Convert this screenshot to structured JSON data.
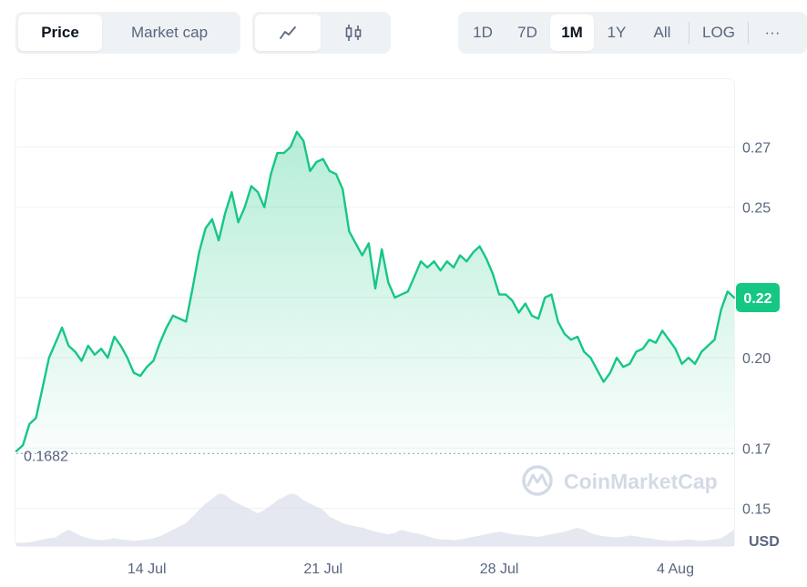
{
  "toolbar": {
    "metric_tabs": [
      {
        "label": "Price",
        "active": true
      },
      {
        "label": "Market cap",
        "active": false
      }
    ],
    "chart_type_icons": [
      "line-chart-icon",
      "candlestick-icon"
    ],
    "range_buttons": [
      {
        "label": "1D",
        "active": false
      },
      {
        "label": "7D",
        "active": false
      },
      {
        "label": "1M",
        "active": true
      },
      {
        "label": "1Y",
        "active": false
      },
      {
        "label": "All",
        "active": false
      }
    ],
    "log_label": "LOG",
    "more_label": "···"
  },
  "chart_data": {
    "type": "area",
    "x_tick_labels": [
      "14 Jul",
      "21 Jul",
      "28 Jul",
      "4 Aug"
    ],
    "y_tick_labels": [
      "0.27",
      "0.25",
      "0.22",
      "0.20",
      "0.17",
      "0.15"
    ],
    "reference_line": {
      "label": "0.1682",
      "value": 0.1682
    },
    "current_price_label": "0.22",
    "currency_label": "USD",
    "watermark": "CoinMarketCap",
    "price_series": [
      [
        0,
        0.169
      ],
      [
        1,
        0.171
      ],
      [
        2,
        0.178
      ],
      [
        3,
        0.18
      ],
      [
        4,
        0.19
      ],
      [
        5,
        0.2
      ],
      [
        6,
        0.205
      ],
      [
        7,
        0.21
      ],
      [
        8,
        0.204
      ],
      [
        9,
        0.202
      ],
      [
        10,
        0.199
      ],
      [
        11,
        0.204
      ],
      [
        12,
        0.201
      ],
      [
        13,
        0.203
      ],
      [
        14,
        0.2
      ],
      [
        15,
        0.207
      ],
      [
        16,
        0.204
      ],
      [
        17,
        0.2
      ],
      [
        18,
        0.195
      ],
      [
        19,
        0.194
      ],
      [
        20,
        0.197
      ],
      [
        21,
        0.199
      ],
      [
        22,
        0.205
      ],
      [
        23,
        0.21
      ],
      [
        24,
        0.214
      ],
      [
        25,
        0.213
      ],
      [
        26,
        0.212
      ],
      [
        27,
        0.223
      ],
      [
        28,
        0.235
      ],
      [
        29,
        0.243
      ],
      [
        30,
        0.246
      ],
      [
        31,
        0.239
      ],
      [
        32,
        0.248
      ],
      [
        33,
        0.255
      ],
      [
        34,
        0.245
      ],
      [
        35,
        0.25
      ],
      [
        36,
        0.257
      ],
      [
        37,
        0.255
      ],
      [
        38,
        0.25
      ],
      [
        39,
        0.261
      ],
      [
        40,
        0.268
      ],
      [
        41,
        0.268
      ],
      [
        42,
        0.27
      ],
      [
        43,
        0.275
      ],
      [
        44,
        0.272
      ],
      [
        45,
        0.262
      ],
      [
        46,
        0.265
      ],
      [
        47,
        0.266
      ],
      [
        48,
        0.262
      ],
      [
        49,
        0.261
      ],
      [
        50,
        0.256
      ],
      [
        51,
        0.242
      ],
      [
        52,
        0.238
      ],
      [
        53,
        0.234
      ],
      [
        54,
        0.238
      ],
      [
        55,
        0.223
      ],
      [
        56,
        0.236
      ],
      [
        57,
        0.225
      ],
      [
        58,
        0.22
      ],
      [
        59,
        0.221
      ],
      [
        60,
        0.222
      ],
      [
        61,
        0.227
      ],
      [
        62,
        0.232
      ],
      [
        63,
        0.23
      ],
      [
        64,
        0.232
      ],
      [
        65,
        0.229
      ],
      [
        66,
        0.232
      ],
      [
        67,
        0.23
      ],
      [
        68,
        0.234
      ],
      [
        69,
        0.232
      ],
      [
        70,
        0.235
      ],
      [
        71,
        0.237
      ],
      [
        72,
        0.233
      ],
      [
        73,
        0.228
      ],
      [
        74,
        0.221
      ],
      [
        75,
        0.221
      ],
      [
        76,
        0.219
      ],
      [
        77,
        0.215
      ],
      [
        78,
        0.218
      ],
      [
        79,
        0.214
      ],
      [
        80,
        0.213
      ],
      [
        81,
        0.22
      ],
      [
        82,
        0.221
      ],
      [
        83,
        0.212
      ],
      [
        84,
        0.208
      ],
      [
        85,
        0.206
      ],
      [
        86,
        0.207
      ],
      [
        87,
        0.202
      ],
      [
        88,
        0.2
      ],
      [
        89,
        0.196
      ],
      [
        90,
        0.192
      ],
      [
        91,
        0.195
      ],
      [
        92,
        0.2
      ],
      [
        93,
        0.197
      ],
      [
        94,
        0.198
      ],
      [
        95,
        0.202
      ],
      [
        96,
        0.203
      ],
      [
        97,
        0.206
      ],
      [
        98,
        0.205
      ],
      [
        99,
        0.209
      ],
      [
        100,
        0.206
      ],
      [
        101,
        0.203
      ],
      [
        102,
        0.198
      ],
      [
        103,
        0.2
      ],
      [
        104,
        0.198
      ],
      [
        105,
        0.202
      ],
      [
        106,
        0.204
      ],
      [
        107,
        0.206
      ],
      [
        108,
        0.216
      ],
      [
        109,
        0.222
      ],
      [
        110,
        0.22
      ]
    ],
    "x_ticks_at": [
      20,
      47,
      74,
      101
    ],
    "y_ticks_at": [
      0.27,
      0.25,
      0.22,
      0.2,
      0.17,
      0.15
    ],
    "volume_series": [
      0.05,
      0.05,
      0.06,
      0.08,
      0.1,
      0.12,
      0.13,
      0.2,
      0.25,
      0.2,
      0.15,
      0.12,
      0.1,
      0.09,
      0.1,
      0.12,
      0.1,
      0.09,
      0.08,
      0.09,
      0.1,
      0.12,
      0.15,
      0.2,
      0.25,
      0.3,
      0.35,
      0.45,
      0.55,
      0.65,
      0.72,
      0.8,
      0.78,
      0.7,
      0.65,
      0.6,
      0.55,
      0.5,
      0.55,
      0.62,
      0.7,
      0.75,
      0.8,
      0.78,
      0.7,
      0.65,
      0.6,
      0.55,
      0.45,
      0.4,
      0.35,
      0.32,
      0.3,
      0.28,
      0.25,
      0.22,
      0.2,
      0.18,
      0.2,
      0.25,
      0.22,
      0.2,
      0.18,
      0.15,
      0.12,
      0.1,
      0.1,
      0.09,
      0.1,
      0.12,
      0.14,
      0.16,
      0.18,
      0.2,
      0.22,
      0.2,
      0.18,
      0.17,
      0.16,
      0.15,
      0.14,
      0.16,
      0.18,
      0.2,
      0.22,
      0.25,
      0.28,
      0.25,
      0.2,
      0.17,
      0.15,
      0.14,
      0.13,
      0.14,
      0.16,
      0.15,
      0.13,
      0.12,
      0.1,
      0.09,
      0.08,
      0.08,
      0.09,
      0.1,
      0.09,
      0.08,
      0.09,
      0.1,
      0.12,
      0.18,
      0.25
    ],
    "colors": {
      "line": "#16c784",
      "area_top": "#16c784",
      "volume": "#cfd6e4",
      "grid": "#eff2f5",
      "reference": "#a6b0c3",
      "badge": "#16c784"
    }
  }
}
